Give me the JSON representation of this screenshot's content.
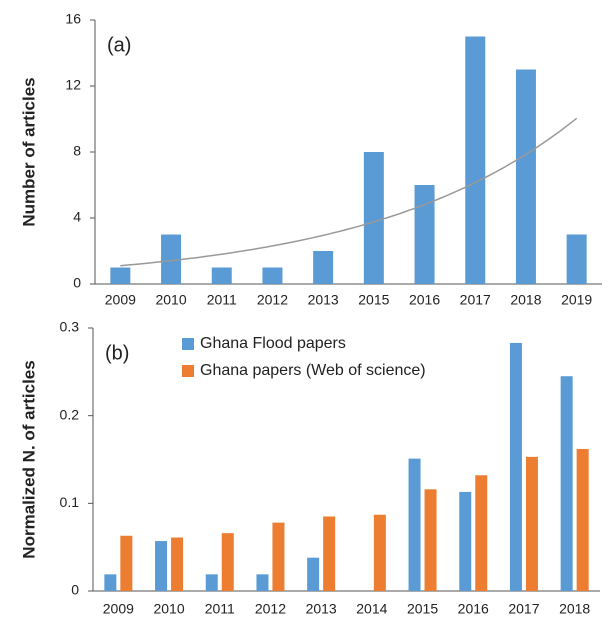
{
  "chart_data": [
    {
      "type": "bar",
      "annotation": "(a)",
      "y_label": "Number of articles",
      "categories": [
        "2009",
        "2010",
        "2011",
        "2012",
        "2013",
        "2015",
        "2016",
        "2017",
        "2018",
        "2019"
      ],
      "values": [
        1,
        3,
        1,
        1,
        2,
        8,
        6,
        15,
        13,
        3
      ],
      "color": "#5b9bd5",
      "trendline": "exponential",
      "ylim": [
        0,
        16
      ],
      "yticks": [
        0,
        4,
        8,
        12,
        16
      ]
    },
    {
      "type": "grouped_bar",
      "annotation": "(b)",
      "y_label": "Normalized N. of articles",
      "categories": [
        "2009",
        "2010",
        "2011",
        "2012",
        "2013",
        "2014",
        "2015",
        "2016",
        "2017",
        "2018"
      ],
      "series": [
        {
          "name": "Ghana Flood papers",
          "color": "#5b9bd5",
          "values": [
            0.019,
            0.057,
            0.019,
            0.019,
            0.038,
            0,
            0.151,
            0.113,
            0.283,
            0.245
          ]
        },
        {
          "name": "Ghana papers (Web of science)",
          "color": "#ed7d31",
          "values": [
            0.063,
            0.061,
            0.066,
            0.078,
            0.085,
            0.087,
            0.116,
            0.132,
            0.153,
            0.162
          ]
        }
      ],
      "ylim": [
        0,
        0.3
      ],
      "yticks": [
        0,
        0.1,
        0.2,
        0.3
      ]
    }
  ]
}
